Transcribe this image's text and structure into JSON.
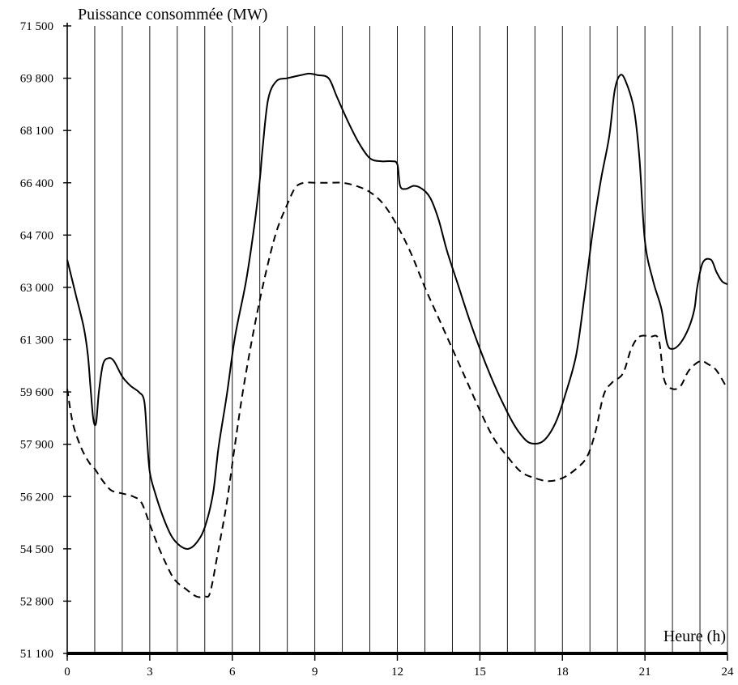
{
  "chart_data": {
    "type": "line",
    "title": "",
    "ylabel": "Puissance consommée (MW)",
    "xlabel": "Heure (h)",
    "xlim": [
      0,
      24
    ],
    "ylim": [
      51100,
      71500
    ],
    "x_ticks": [
      0,
      3,
      6,
      9,
      12,
      15,
      18,
      21,
      24
    ],
    "x_tick_labels": [
      "0",
      "3",
      "6",
      "9",
      "12",
      "15",
      "18",
      "21",
      "24"
    ],
    "y_ticks": [
      51100,
      52800,
      54500,
      56200,
      57900,
      59600,
      61300,
      63000,
      64700,
      66400,
      68100,
      69800,
      71500
    ],
    "y_tick_labels": [
      "51 100",
      "52 800",
      "54 500",
      "56 200",
      "57 900",
      "59 600",
      "61 300",
      "63 000",
      "64 700",
      "66 400",
      "68 100",
      "69 800",
      "71 500"
    ],
    "grid": "vertical lines every hour",
    "series": [
      {
        "style": "solid",
        "points": [
          [
            0,
            63900
          ],
          [
            0.3,
            62800
          ],
          [
            0.6,
            61700
          ],
          [
            0.75,
            60800
          ],
          [
            0.85,
            59700
          ],
          [
            0.95,
            58700
          ],
          [
            1.05,
            58600
          ],
          [
            1.15,
            59600
          ],
          [
            1.3,
            60500
          ],
          [
            1.5,
            60700
          ],
          [
            1.7,
            60600
          ],
          [
            2.0,
            60100
          ],
          [
            2.3,
            59800
          ],
          [
            2.6,
            59600
          ],
          [
            2.8,
            59300
          ],
          [
            2.9,
            58100
          ],
          [
            3.0,
            57000
          ],
          [
            3.2,
            56300
          ],
          [
            3.5,
            55500
          ],
          [
            3.8,
            54900
          ],
          [
            4.1,
            54600
          ],
          [
            4.4,
            54500
          ],
          [
            4.7,
            54700
          ],
          [
            5.0,
            55200
          ],
          [
            5.3,
            56300
          ],
          [
            5.5,
            57800
          ],
          [
            5.8,
            59500
          ],
          [
            6.1,
            61400
          ],
          [
            6.5,
            63200
          ],
          [
            6.8,
            65000
          ],
          [
            7.0,
            66500
          ],
          [
            7.1,
            67500
          ],
          [
            7.3,
            69100
          ],
          [
            7.6,
            69700
          ],
          [
            8.0,
            69800
          ],
          [
            8.5,
            69900
          ],
          [
            8.8,
            69950
          ],
          [
            9.1,
            69900
          ],
          [
            9.5,
            69800
          ],
          [
            9.8,
            69200
          ],
          [
            10.2,
            68400
          ],
          [
            10.6,
            67700
          ],
          [
            11.0,
            67200
          ],
          [
            11.4,
            67100
          ],
          [
            11.8,
            67100
          ],
          [
            12.0,
            67000
          ],
          [
            12.1,
            66300
          ],
          [
            12.3,
            66200
          ],
          [
            12.6,
            66300
          ],
          [
            12.9,
            66200
          ],
          [
            13.2,
            65900
          ],
          [
            13.5,
            65200
          ],
          [
            13.8,
            64200
          ],
          [
            14.2,
            63100
          ],
          [
            14.6,
            62000
          ],
          [
            15.0,
            61000
          ],
          [
            15.4,
            60100
          ],
          [
            15.8,
            59300
          ],
          [
            16.2,
            58600
          ],
          [
            16.5,
            58200
          ],
          [
            16.8,
            57950
          ],
          [
            17.2,
            57950
          ],
          [
            17.5,
            58200
          ],
          [
            17.8,
            58700
          ],
          [
            18.1,
            59500
          ],
          [
            18.5,
            60800
          ],
          [
            18.8,
            62700
          ],
          [
            19.1,
            64800
          ],
          [
            19.4,
            66500
          ],
          [
            19.7,
            67900
          ],
          [
            19.9,
            69400
          ],
          [
            20.1,
            69900
          ],
          [
            20.3,
            69700
          ],
          [
            20.6,
            68800
          ],
          [
            20.8,
            67200
          ],
          [
            21.0,
            64500
          ],
          [
            21.3,
            63200
          ],
          [
            21.6,
            62300
          ],
          [
            21.8,
            61200
          ],
          [
            22.0,
            61000
          ],
          [
            22.3,
            61200
          ],
          [
            22.6,
            61700
          ],
          [
            22.8,
            62300
          ],
          [
            22.9,
            63000
          ],
          [
            23.1,
            63800
          ],
          [
            23.4,
            63900
          ],
          [
            23.6,
            63500
          ],
          [
            23.8,
            63200
          ],
          [
            24.0,
            63100
          ]
        ]
      },
      {
        "style": "dashed",
        "points": [
          [
            0,
            59700
          ],
          [
            0.2,
            58600
          ],
          [
            0.5,
            57800
          ],
          [
            0.8,
            57300
          ],
          [
            1.0,
            57100
          ],
          [
            1.3,
            56700
          ],
          [
            1.6,
            56400
          ],
          [
            2.0,
            56300
          ],
          [
            2.4,
            56200
          ],
          [
            2.7,
            56000
          ],
          [
            3.0,
            55300
          ],
          [
            3.3,
            54600
          ],
          [
            3.6,
            54000
          ],
          [
            3.9,
            53500
          ],
          [
            4.3,
            53200
          ],
          [
            4.7,
            52950
          ],
          [
            5.0,
            52950
          ],
          [
            5.2,
            53100
          ],
          [
            5.5,
            54500
          ],
          [
            5.8,
            56000
          ],
          [
            6.1,
            57900
          ],
          [
            6.4,
            59700
          ],
          [
            6.8,
            61700
          ],
          [
            7.2,
            63400
          ],
          [
            7.6,
            64800
          ],
          [
            8.0,
            65700
          ],
          [
            8.3,
            66250
          ],
          [
            8.6,
            66400
          ],
          [
            9.0,
            66400
          ],
          [
            9.5,
            66400
          ],
          [
            10.0,
            66400
          ],
          [
            10.5,
            66300
          ],
          [
            11.0,
            66100
          ],
          [
            11.5,
            65700
          ],
          [
            12.0,
            65000
          ],
          [
            12.5,
            64100
          ],
          [
            13.0,
            63000
          ],
          [
            13.5,
            62000
          ],
          [
            14.0,
            61000
          ],
          [
            14.5,
            60000
          ],
          [
            15.0,
            59000
          ],
          [
            15.5,
            58100
          ],
          [
            16.0,
            57500
          ],
          [
            16.5,
            57000
          ],
          [
            17.0,
            56800
          ],
          [
            17.5,
            56700
          ],
          [
            18.0,
            56800
          ],
          [
            18.5,
            57100
          ],
          [
            18.9,
            57500
          ],
          [
            19.2,
            58300
          ],
          [
            19.5,
            59500
          ],
          [
            19.8,
            59900
          ],
          [
            20.2,
            60200
          ],
          [
            20.5,
            61000
          ],
          [
            20.8,
            61400
          ],
          [
            21.2,
            61400
          ],
          [
            21.5,
            61300
          ],
          [
            21.7,
            60000
          ],
          [
            22.0,
            59700
          ],
          [
            22.3,
            59800
          ],
          [
            22.6,
            60300
          ],
          [
            23.0,
            60600
          ],
          [
            23.3,
            60500
          ],
          [
            23.6,
            60300
          ],
          [
            24.0,
            59700
          ]
        ]
      }
    ]
  }
}
